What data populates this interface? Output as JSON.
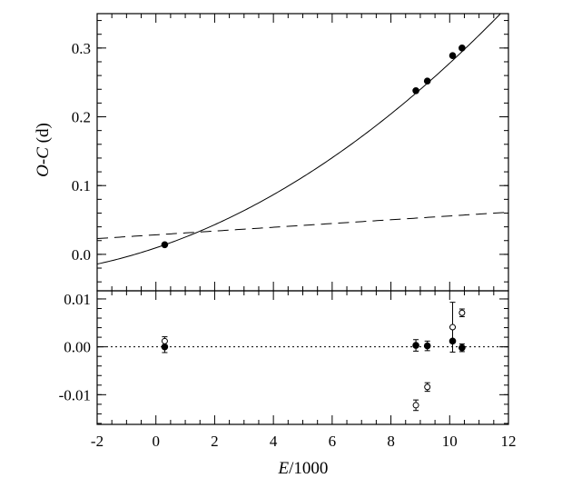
{
  "chart_data": [
    {
      "type": "scatter",
      "panel": "top",
      "xlabel_parts": [
        "E",
        "/1000"
      ],
      "ylabel_parts": [
        "O-C",
        " (d)"
      ],
      "xlim": [
        -2,
        12
      ],
      "ylim": [
        -0.053,
        0.35
      ],
      "x_ticks": [
        -2,
        0,
        2,
        4,
        6,
        8,
        10,
        12
      ],
      "y_ticks": [
        0.0,
        0.1,
        0.2,
        0.3
      ],
      "y_tick_labels": [
        "0.0",
        "0.1",
        "0.2",
        "0.3"
      ],
      "series": [
        {
          "kind": "points",
          "marker": "filled-circle",
          "x": [
            0.3,
            8.85,
            9.24,
            10.1,
            10.42
          ],
          "y": [
            0.014,
            0.238,
            0.252,
            0.289,
            0.3
          ]
        },
        {
          "kind": "curve",
          "style": "solid",
          "formula": "quadratic",
          "coefficients": [
            0.00948,
            0.0143,
            0.001255
          ]
        },
        {
          "kind": "line",
          "style": "dashed",
          "formula": "linear",
          "coefficients": [
            0.00274,
            0.0284
          ]
        }
      ]
    },
    {
      "type": "scatter",
      "panel": "bottom",
      "xlim": [
        -2,
        12
      ],
      "ylim": [
        -0.0162,
        0.0117
      ],
      "x_ticks": [
        -2,
        0,
        2,
        4,
        6,
        8,
        10,
        12
      ],
      "x_tick_labels": [
        "-2",
        "0",
        "2",
        "4",
        "6",
        "8",
        "10",
        "12"
      ],
      "y_ticks": [
        0.01,
        0.0,
        -0.01
      ],
      "y_tick_labels": [
        "0.01",
        "0.00",
        "-0.01"
      ],
      "reference_line": {
        "y": 0.0,
        "style": "dotted"
      },
      "series": [
        {
          "kind": "points",
          "marker": "filled-circle",
          "x": [
            0.3,
            8.85,
            9.24,
            10.1,
            10.42
          ],
          "y": [
            0.0,
            0.0003,
            0.0002,
            0.0012,
            -0.0002
          ],
          "yerr": [
            0.0012,
            0.0012,
            0.001,
            0.0,
            0.0008
          ]
        },
        {
          "kind": "points",
          "marker": "open-circle",
          "x": [
            0.3,
            8.85,
            9.24,
            10.1,
            10.42
          ],
          "y": [
            0.0012,
            -0.0122,
            -0.0084,
            0.0041,
            0.0071
          ],
          "yerr": [
            0.0009,
            0.0011,
            0.0009,
            0.0052,
            0.0008
          ]
        }
      ]
    }
  ]
}
